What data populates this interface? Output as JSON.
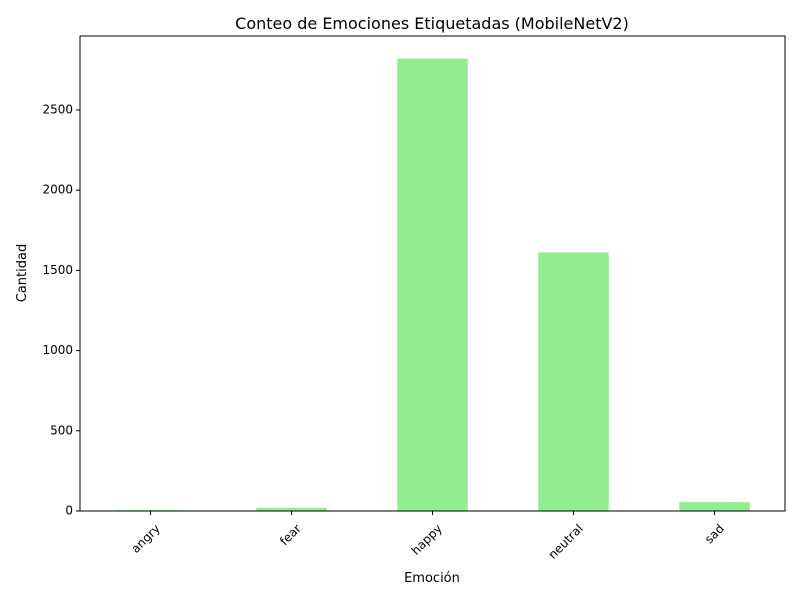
{
  "chart_data": {
    "type": "bar",
    "title": "Conteo de Emociones Etiquetadas (MobileNetV2)",
    "xlabel": "Emoción",
    "ylabel": "Cantidad",
    "categories": [
      "angry",
      "fear",
      "happy",
      "neutral",
      "sad"
    ],
    "values": [
      5,
      20,
      2820,
      1612,
      55
    ],
    "yticks": [
      0,
      500,
      1000,
      1500,
      2000,
      2500
    ],
    "ylim": [
      0,
      2961
    ],
    "bar_color": "#90ee90",
    "grid": false,
    "legend": "none",
    "xtick_rotation_deg": 45
  }
}
